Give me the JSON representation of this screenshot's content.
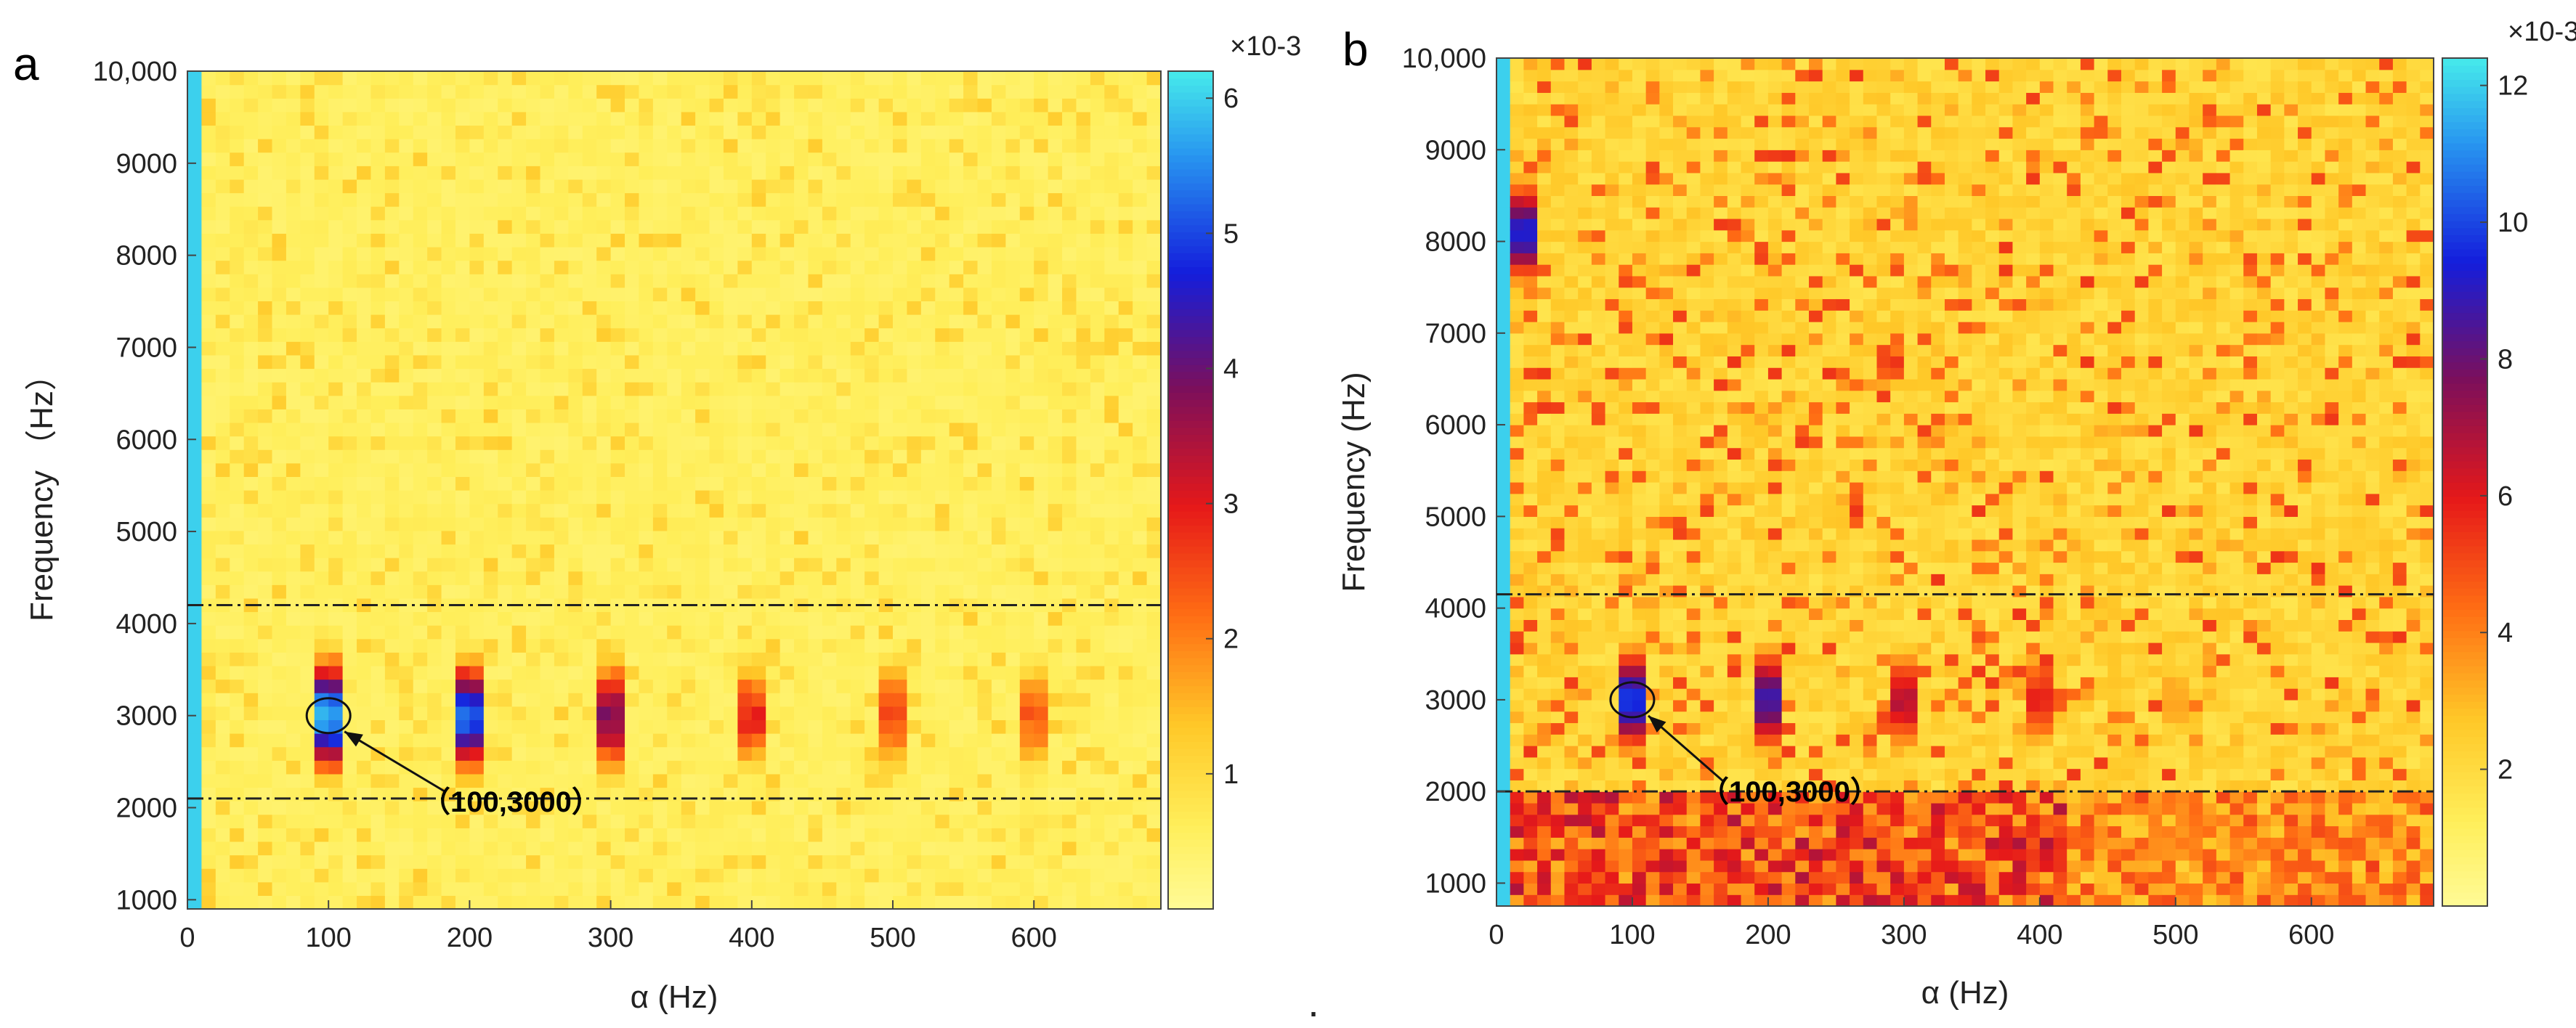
{
  "figure_note": ".",
  "chart_data": [
    {
      "type": "heatmap",
      "panel_label": "a",
      "xlabel": "α (Hz)",
      "ylabel": "Frequency  （Hz）",
      "xlim": [
        0,
        690
      ],
      "ylim": [
        900,
        10000
      ],
      "xticks": [
        0,
        100,
        200,
        300,
        400,
        500,
        600
      ],
      "yticks": [
        1000,
        2000,
        3000,
        4000,
        5000,
        6000,
        7000,
        8000,
        9000,
        10000
      ],
      "ytick_labels": [
        "1000",
        "2000",
        "3000",
        "4000",
        "5000",
        "6000",
        "7000",
        "8000",
        "9000",
        "10,000"
      ],
      "colorbar": {
        "min": 0,
        "max": 6.2,
        "ticks": [
          1,
          2,
          3,
          4,
          5,
          6
        ],
        "exponent_label": "×10-3"
      },
      "background_level": 0.4,
      "dc_column_level": 6.0,
      "hotspots": [
        {
          "alpha": 100,
          "freq": 3000,
          "peak": 5.6
        },
        {
          "alpha": 200,
          "freq": 3000,
          "peak": 5.0
        },
        {
          "alpha": 300,
          "freq": 3000,
          "peak": 3.6
        },
        {
          "alpha": 400,
          "freq": 3000,
          "peak": 2.6
        },
        {
          "alpha": 500,
          "freq": 3000,
          "peak": 2.3
        },
        {
          "alpha": 600,
          "freq": 3000,
          "peak": 2.1
        }
      ],
      "band_lines": [
        2100,
        4200
      ],
      "annotation": {
        "text": "（100,3000）",
        "point": [
          100,
          3000
        ]
      }
    },
    {
      "type": "heatmap",
      "panel_label": "b",
      "xlabel": "α (Hz)",
      "ylabel": "Frequency (Hz)",
      "xlim": [
        0,
        690
      ],
      "ylim": [
        750,
        10000
      ],
      "xticks": [
        0,
        100,
        200,
        300,
        400,
        500,
        600
      ],
      "yticks": [
        1000,
        2000,
        3000,
        4000,
        5000,
        6000,
        7000,
        8000,
        9000,
        10000
      ],
      "ytick_labels": [
        "1000",
        "2000",
        "3000",
        "4000",
        "5000",
        "6000",
        "7000",
        "8000",
        "9000",
        "10,000"
      ],
      "colorbar": {
        "min": 0,
        "max": 12.4,
        "ticks": [
          2,
          4,
          6,
          8,
          10,
          12
        ],
        "exponent_label": "×10-3"
      },
      "background_level": 1.6,
      "dc_column_level": 12.0,
      "hotspots": [
        {
          "alpha": 100,
          "freq": 3000,
          "peak": 9.5
        },
        {
          "alpha": 200,
          "freq": 3000,
          "peak": 8.5
        },
        {
          "alpha": 300,
          "freq": 3000,
          "peak": 6.5
        },
        {
          "alpha": 400,
          "freq": 3000,
          "peak": 5.5
        },
        {
          "alpha": 500,
          "freq": 3000,
          "peak": 3.2
        },
        {
          "alpha": 20,
          "freq": 8100,
          "peak": 9.0
        }
      ],
      "low_freq_band": {
        "from": 750,
        "to": 1950,
        "level": 5.5
      },
      "band_lines": [
        2000,
        4150
      ],
      "annotation": {
        "text": "（100,3000）",
        "point": [
          100,
          3000
        ]
      }
    }
  ]
}
